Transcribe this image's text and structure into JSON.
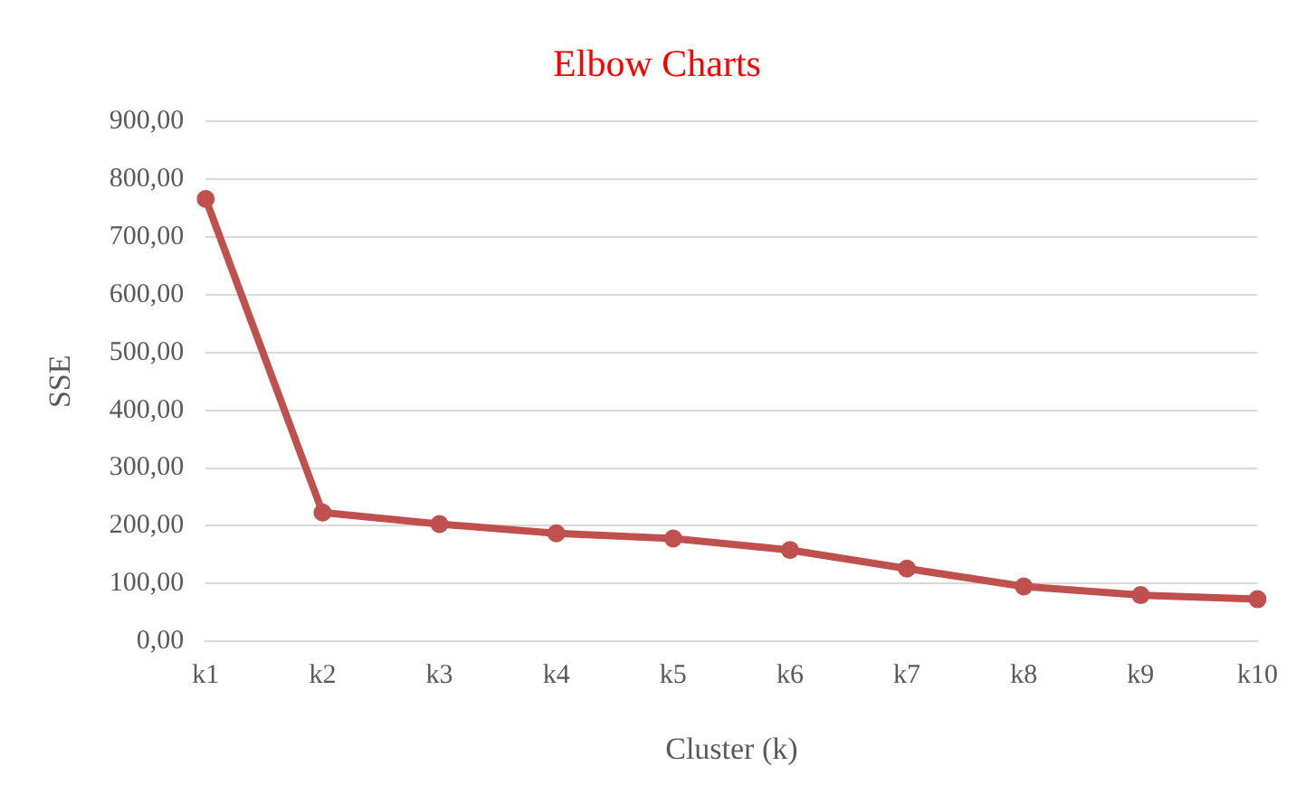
{
  "chart_data": {
    "type": "line",
    "title": "Elbow Charts",
    "xlabel": "Cluster (k)",
    "ylabel": "SSE",
    "categories": [
      "k1",
      "k2",
      "k3",
      "k4",
      "k5",
      "k6",
      "k7",
      "k8",
      "k9",
      "k10"
    ],
    "series": [
      {
        "color": "#c0504d",
        "values": [
          766,
          223,
          203,
          187,
          178,
          158,
          126,
          95,
          80,
          73
        ]
      }
    ],
    "ylim": [
      0,
      900
    ],
    "yticks": [
      {
        "value": 0,
        "label": "0,00"
      },
      {
        "value": 100,
        "label": "100,00"
      },
      {
        "value": 200,
        "label": "200,00"
      },
      {
        "value": 300,
        "label": "300,00"
      },
      {
        "value": 400,
        "label": "400,00"
      },
      {
        "value": 500,
        "label": "500,00"
      },
      {
        "value": 600,
        "label": "600,00"
      },
      {
        "value": 700,
        "label": "700,00"
      },
      {
        "value": 800,
        "label": "800,00"
      },
      {
        "value": 900,
        "label": "900,00"
      }
    ],
    "grid": "y",
    "legend": false,
    "marker": "circle",
    "line_style": "solid"
  }
}
